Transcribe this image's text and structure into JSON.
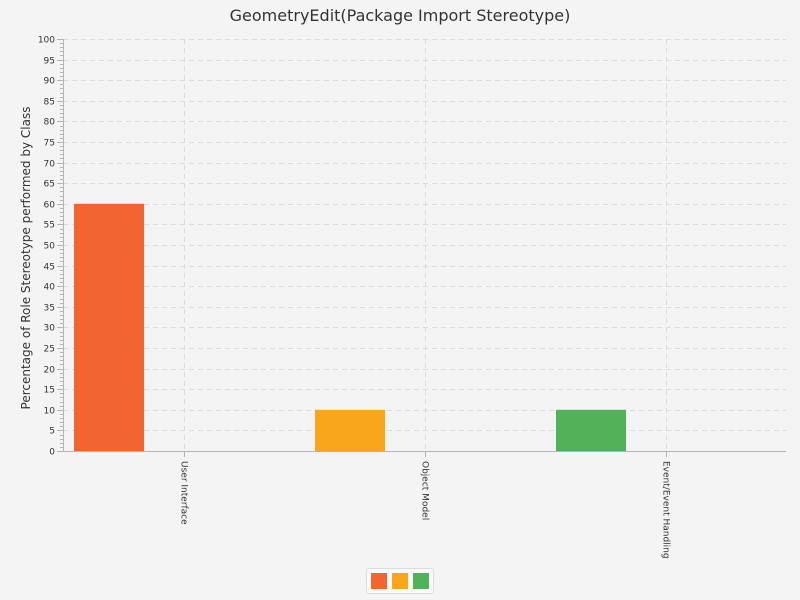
{
  "chart_data": {
    "type": "bar",
    "title": "GeometryEdit(Package Import Stereotype)",
    "xlabel": "",
    "ylabel": "Percentage of Role Stereotype performed by Class",
    "ylim": [
      0,
      100
    ],
    "y_major_step": 5,
    "y_minor_step": 1,
    "grid": true,
    "categories": [
      "User Interface",
      "Object Model",
      "Event/Event Handling"
    ],
    "values": [
      60,
      10,
      10
    ],
    "colors": [
      "#f26430",
      "#f9a61c",
      "#52b25a"
    ],
    "legend": {
      "placement": "bottom-center",
      "swatches": [
        "#f26430",
        "#f9a61c",
        "#52b25a"
      ]
    }
  }
}
